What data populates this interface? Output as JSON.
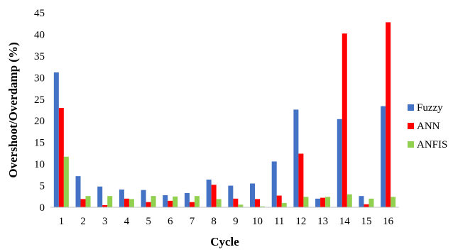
{
  "chart_data": {
    "type": "bar",
    "categories": [
      "1",
      "2",
      "3",
      "4",
      "5",
      "6",
      "7",
      "8",
      "9",
      "10",
      "11",
      "12",
      "13",
      "14",
      "15",
      "16"
    ],
    "series": [
      {
        "name": "Fuzzy",
        "color": "#4472C4",
        "values": [
          31.2,
          7.2,
          4.8,
          4.1,
          4.0,
          2.8,
          3.3,
          6.4,
          5.0,
          5.5,
          10.6,
          22.6,
          2.0,
          20.4,
          2.6,
          23.4
        ]
      },
      {
        "name": "ANN",
        "color": "#FF0000",
        "values": [
          23.0,
          1.9,
          0.5,
          2.0,
          1.2,
          1.5,
          1.2,
          5.2,
          2.0,
          1.9,
          2.7,
          12.4,
          2.2,
          40.2,
          0.7,
          42.8
        ]
      },
      {
        "name": "ANFIS",
        "color": "#92D050",
        "values": [
          11.7,
          2.6,
          2.6,
          1.9,
          2.6,
          2.5,
          2.6,
          1.9,
          0.6,
          0.2,
          1.0,
          2.4,
          2.4,
          3.0,
          2.0,
          2.4
        ]
      }
    ],
    "xlabel": "Cycle",
    "ylabel": "Overshoot/Overdamp (%)",
    "ylim": [
      0,
      45
    ],
    "yticks": [
      "0",
      "5",
      "10",
      "15",
      "20",
      "25",
      "30",
      "35",
      "40",
      "45"
    ],
    "grid": false,
    "legend_position": "right"
  }
}
